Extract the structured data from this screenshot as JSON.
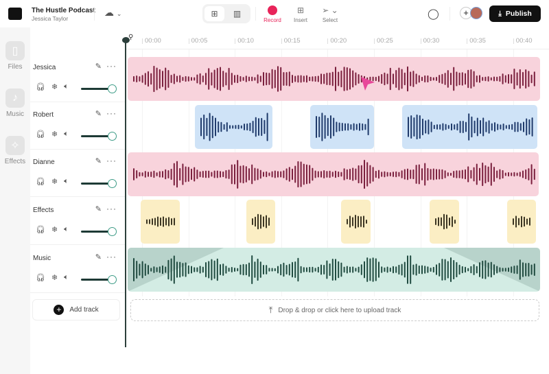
{
  "header": {
    "podcast_title": "The Hustle Podcast",
    "user_name": "Jessica Taylor",
    "tools": [
      {
        "label": "Record",
        "icon": "record-icon"
      },
      {
        "label": "Insert",
        "icon": "insert-icon"
      },
      {
        "label": "Select",
        "icon": "cursor-icon"
      }
    ],
    "publish_label": "Publish"
  },
  "rail": [
    {
      "label": "Files",
      "icon": "file-icon"
    },
    {
      "label": "Music",
      "icon": "music-note-icon"
    },
    {
      "label": "Effects",
      "icon": "magic-wand-icon"
    }
  ],
  "ruler": [
    "00:00",
    "00:05",
    "00:10",
    "00:15",
    "00:20",
    "00:25",
    "00:30",
    "00:35",
    "00:40"
  ],
  "tracks": [
    {
      "name": "Jessica",
      "volume": 100,
      "color": "#f8d3dc",
      "wave": "#7a1f3d"
    },
    {
      "name": "Robert",
      "volume": 100,
      "color": "#cfe3f7",
      "wave": "#1f3a6b"
    },
    {
      "name": "Dianne",
      "volume": 100,
      "color": "#f8d3dc",
      "wave": "#7a1f3d"
    },
    {
      "name": "Effects",
      "volume": 100,
      "color": "#fbeec4",
      "wave": "#3b3522"
    },
    {
      "name": "Music",
      "volume": 100,
      "color": "#d3ece4",
      "wave": "#1f4a3f"
    }
  ],
  "add_track_label": "Add track",
  "drop_label": "Drop & drop or click here to upload track",
  "colors": {
    "record": "#e8245a",
    "accent": "#3c9b86"
  }
}
